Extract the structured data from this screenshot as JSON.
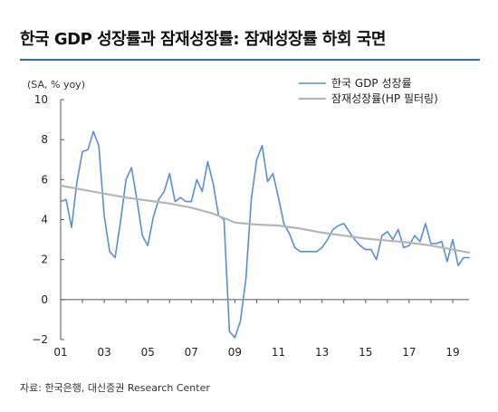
{
  "header": {
    "title": "한국 GDP 성장률과 잠재성장률: 잠재성장률 하회 국면"
  },
  "footer": {
    "source": "자료: 한국은행, 대신증권 Research Center"
  },
  "colors": {
    "gdp_series": "#5b8ed0",
    "potential_series": "#b5b5b5",
    "title_rule": "#2d6fb3",
    "axis": "#555555"
  },
  "chart_data": {
    "type": "line",
    "unit_label": "(SA, % yoy)",
    "ylim": [
      -2,
      10
    ],
    "yticks": [
      "10",
      "8",
      "6",
      "4",
      "2",
      "0",
      "−2"
    ],
    "ytick_values": [
      10,
      8,
      6,
      4,
      2,
      0,
      -2
    ],
    "xlim": [
      2001,
      2019.75
    ],
    "xticks": [
      "01",
      "03",
      "05",
      "07",
      "09",
      "11",
      "13",
      "15",
      "17",
      "19"
    ],
    "xtick_values": [
      2001,
      2003,
      2005,
      2007,
      2009,
      2011,
      2013,
      2015,
      2017,
      2019
    ],
    "grid": false,
    "legend_position": "top-right",
    "series": [
      {
        "name": "한국 GDP 성장률",
        "color": "#5b8ed0",
        "x": [
          2001.0,
          2001.25,
          2001.5,
          2001.75,
          2002.0,
          2002.25,
          2002.5,
          2002.75,
          2003.0,
          2003.25,
          2003.5,
          2003.75,
          2004.0,
          2004.25,
          2004.5,
          2004.75,
          2005.0,
          2005.25,
          2005.5,
          2005.75,
          2006.0,
          2006.25,
          2006.5,
          2006.75,
          2007.0,
          2007.25,
          2007.5,
          2007.75,
          2008.0,
          2008.25,
          2008.5,
          2008.75,
          2009.0,
          2009.25,
          2009.5,
          2009.75,
          2010.0,
          2010.25,
          2010.5,
          2010.75,
          2011.0,
          2011.25,
          2011.5,
          2011.75,
          2012.0,
          2012.25,
          2012.5,
          2012.75,
          2013.0,
          2013.25,
          2013.5,
          2013.75,
          2014.0,
          2014.25,
          2014.5,
          2014.75,
          2015.0,
          2015.25,
          2015.5,
          2015.75,
          2016.0,
          2016.25,
          2016.5,
          2016.75,
          2017.0,
          2017.25,
          2017.5,
          2017.75,
          2018.0,
          2018.25,
          2018.5,
          2018.75,
          2019.0,
          2019.25,
          2019.5,
          2019.75
        ],
        "values": [
          4.9,
          5.0,
          3.6,
          5.9,
          7.4,
          7.5,
          8.4,
          7.7,
          4.2,
          2.4,
          2.1,
          3.9,
          6.0,
          6.6,
          5.0,
          3.2,
          2.7,
          4.1,
          5.0,
          5.4,
          6.3,
          4.9,
          5.1,
          4.9,
          4.9,
          6.0,
          5.4,
          6.9,
          5.8,
          4.2,
          4.0,
          -1.6,
          -1.9,
          -1.1,
          1.0,
          5.0,
          7.0,
          7.7,
          5.9,
          6.3,
          5.1,
          3.8,
          3.3,
          2.6,
          2.4,
          2.4,
          2.4,
          2.4,
          2.6,
          3.0,
          3.5,
          3.7,
          3.8,
          3.4,
          3.0,
          2.7,
          2.5,
          2.5,
          2.0,
          3.2,
          3.4,
          3.0,
          3.5,
          2.6,
          2.7,
          3.2,
          2.9,
          3.8,
          2.8,
          2.8,
          2.9,
          1.9,
          3.0,
          1.7,
          2.1,
          2.1
        ]
      },
      {
        "name": "잠재성장률(HP 필터링)",
        "color": "#b5b5b5",
        "x": [
          2001.0,
          2002.0,
          2003.0,
          2004.0,
          2005.0,
          2006.0,
          2007.0,
          2008.0,
          2009.0,
          2010.0,
          2011.0,
          2012.0,
          2013.0,
          2014.0,
          2015.0,
          2016.0,
          2017.0,
          2018.0,
          2019.0,
          2019.75
        ],
        "values": [
          5.7,
          5.5,
          5.3,
          5.1,
          4.95,
          4.8,
          4.6,
          4.3,
          3.85,
          3.75,
          3.7,
          3.55,
          3.35,
          3.2,
          3.05,
          2.95,
          2.85,
          2.7,
          2.5,
          2.35
        ]
      }
    ]
  }
}
